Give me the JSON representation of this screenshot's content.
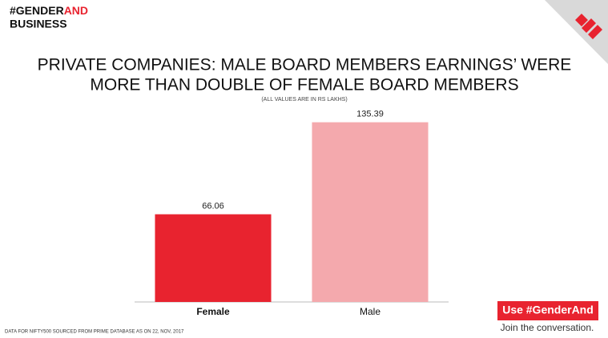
{
  "brand": {
    "hashtag": "#GENDER",
    "hashtag_end": "AND",
    "subtitle": "BUSINESS"
  },
  "chart_data": {
    "type": "bar",
    "title": [
      "PRIVATE COMPANIES: MALE BOARD MEMBERS EARNINGS’ WERE",
      "MORE THAN DOUBLE OF FEMALE BOARD MEMBERS"
    ],
    "subtitle": "(ALL VALUES ARE IN RS LAKHS)",
    "categories": [
      "Female",
      "Male"
    ],
    "values": [
      66.06,
      135.39
    ],
    "colors": [
      "#e8232f",
      "#f4a9ad"
    ],
    "ylim": [
      0,
      140
    ]
  },
  "footer": "DATA FOR NIFTY500 SOURCED FROM PRIME DATABASE AS ON 22, NOV, 2017",
  "cta": {
    "button": "Use #GenderAnd",
    "text": "Join the conversation."
  }
}
